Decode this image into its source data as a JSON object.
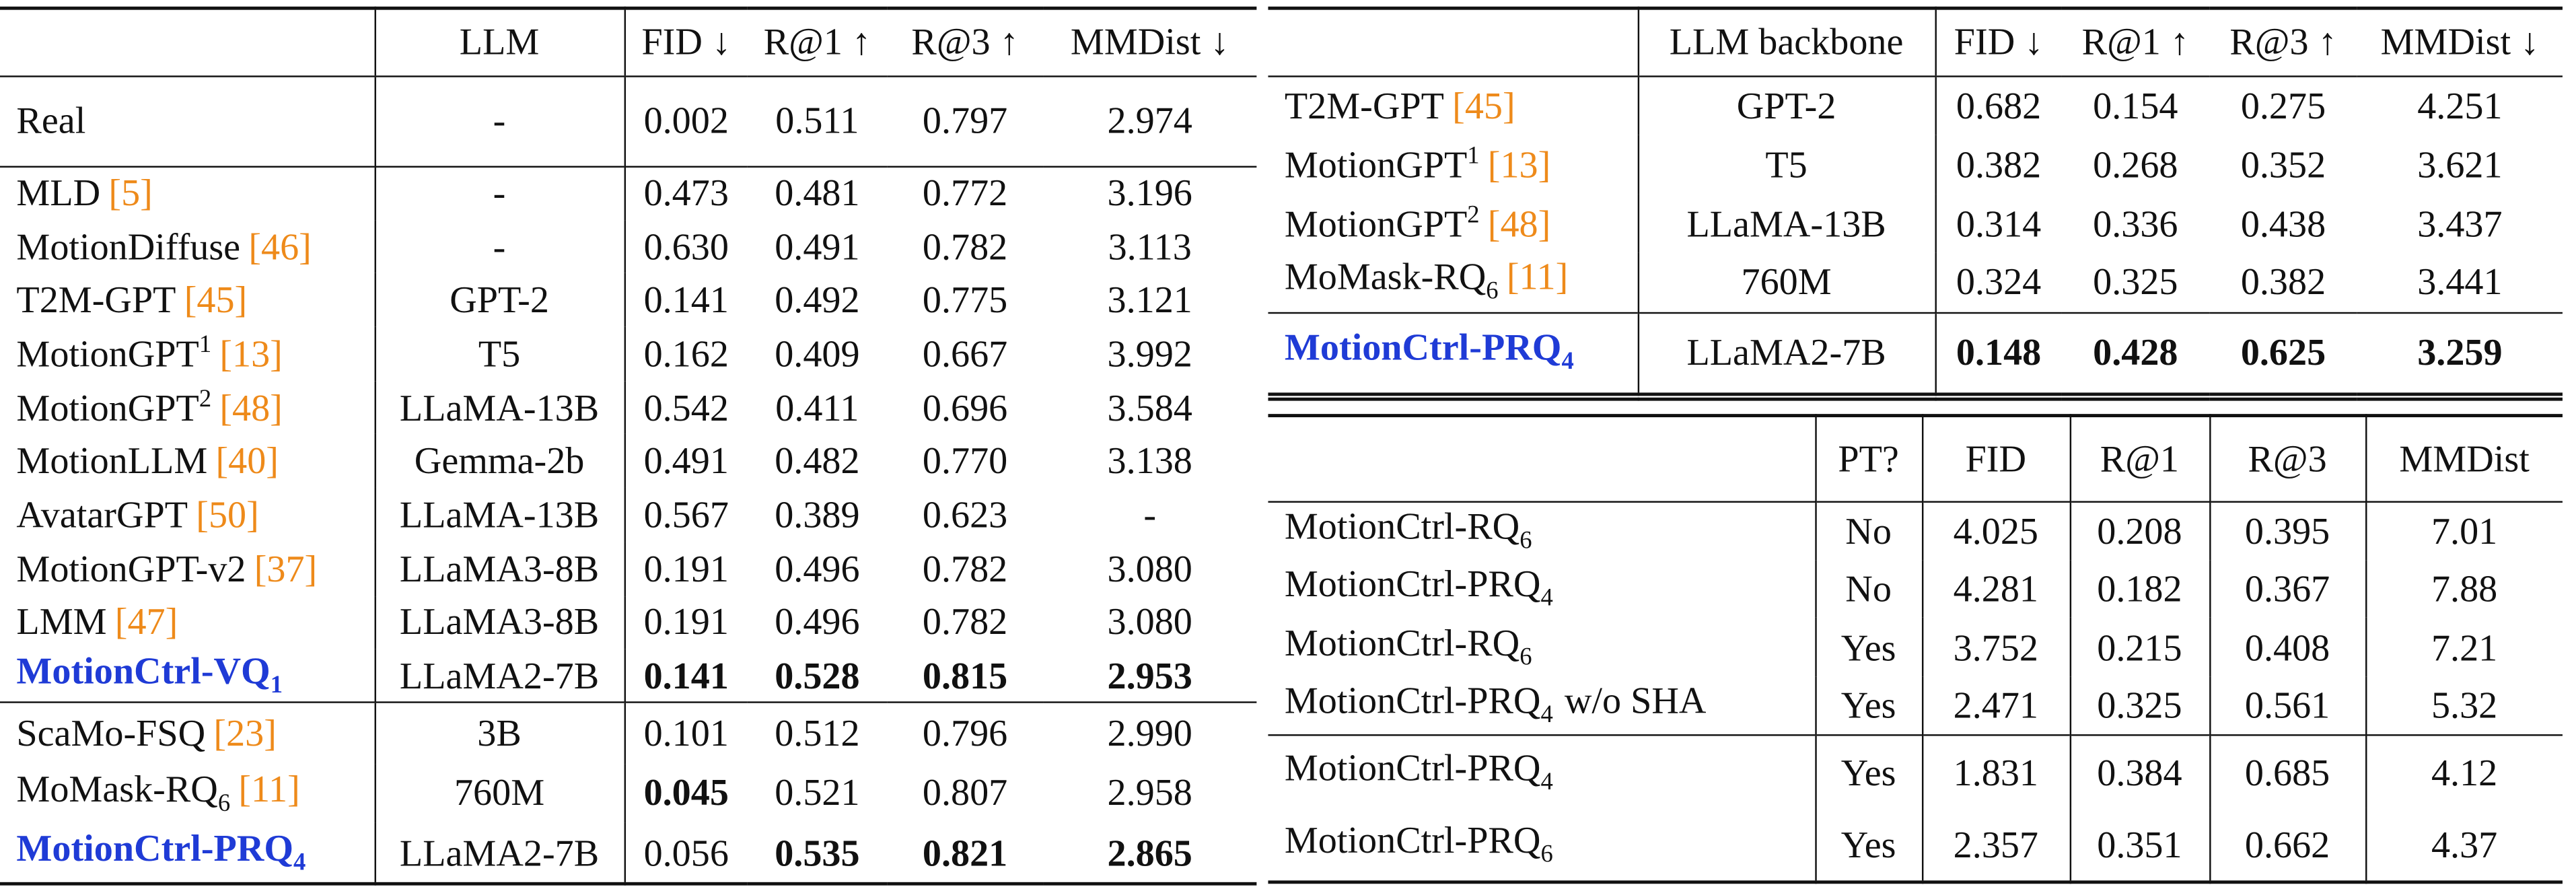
{
  "tables": [
    {
      "columns": [
        "LLM",
        "FID ↓",
        "R@1 ↑",
        "R@3 ↑",
        "MMDist ↓"
      ],
      "groups": [
        [
          {
            "method": {
              "name": "Real"
            },
            "cells": [
              "-",
              "0.002",
              "0.511",
              "0.797",
              "2.974"
            ]
          }
        ],
        [
          {
            "method": {
              "name": "MLD",
              "ref": "[5]"
            },
            "cells": [
              "-",
              "0.473",
              "0.481",
              "0.772",
              "3.196"
            ]
          },
          {
            "method": {
              "name": "MotionDiffuse",
              "ref": "[46]"
            },
            "cells": [
              "-",
              "0.630",
              "0.491",
              "0.782",
              "3.113"
            ]
          },
          {
            "method": {
              "name": "T2M-GPT",
              "ref": "[45]"
            },
            "cells": [
              "GPT-2",
              "0.141",
              "0.492",
              "0.775",
              "3.121"
            ]
          },
          {
            "method": {
              "name": "MotionGPT",
              "sup": "1",
              "ref": "[13]"
            },
            "cells": [
              "T5",
              "0.162",
              "0.409",
              "0.667",
              "3.992"
            ]
          },
          {
            "method": {
              "name": "MotionGPT",
              "sup": "2",
              "ref": "[48]"
            },
            "cells": [
              "LLaMA-13B",
              "0.542",
              "0.411",
              "0.696",
              "3.584"
            ]
          },
          {
            "method": {
              "name": "MotionLLM",
              "ref": "[40]"
            },
            "cells": [
              "Gemma-2b",
              "0.491",
              "0.482",
              "0.770",
              "3.138"
            ]
          },
          {
            "method": {
              "name": "AvatarGPT",
              "ref": "[50]"
            },
            "cells": [
              "LLaMA-13B",
              "0.567",
              "0.389",
              "0.623",
              "-"
            ]
          },
          {
            "method": {
              "name": "MotionGPT-v2",
              "ref": "[37]"
            },
            "cells": [
              "LLaMA3-8B",
              "0.191",
              "0.496",
              "0.782",
              "3.080"
            ]
          },
          {
            "method": {
              "name": "LMM",
              "ref": "[47]"
            },
            "cells": [
              "LLaMA3-8B",
              "0.191",
              "0.496",
              "0.782",
              "3.080"
            ]
          },
          {
            "method": {
              "name": "MotionCtrl-VQ",
              "sub": "1",
              "highlight": true
            },
            "cells": [
              "LLaMA2-7B",
              {
                "text": "0.141",
                "bold": true
              },
              {
                "text": "0.528",
                "bold": true
              },
              {
                "text": "0.815",
                "bold": true
              },
              {
                "text": "2.953",
                "bold": true
              }
            ]
          }
        ],
        [
          {
            "method": {
              "name": "ScaMo-FSQ",
              "ref": "[23]"
            },
            "cells": [
              "3B",
              "0.101",
              "0.512",
              "0.796",
              "2.990"
            ]
          },
          {
            "method": {
              "name": "MoMask-RQ",
              "sub": "6",
              "ref": "[11]"
            },
            "cells": [
              "760M",
              {
                "text": "0.045",
                "bold": true
              },
              "0.521",
              "0.807",
              "2.958"
            ]
          },
          {
            "method": {
              "name": "MotionCtrl-PRQ",
              "sub": "4",
              "highlight": true
            },
            "cells": [
              "LLaMA2-7B",
              "0.056",
              {
                "text": "0.535",
                "bold": true
              },
              {
                "text": "0.821",
                "bold": true
              },
              {
                "text": "2.865",
                "bold": true
              }
            ]
          }
        ]
      ]
    },
    {
      "columns": [
        "LLM backbone",
        "FID ↓",
        "R@1 ↑",
        "R@3 ↑",
        "MMDist ↓"
      ],
      "groups": [
        [
          {
            "method": {
              "name": "T2M-GPT",
              "ref": "[45]"
            },
            "cells": [
              "GPT-2",
              "0.682",
              "0.154",
              "0.275",
              "4.251"
            ]
          },
          {
            "method": {
              "name": "MotionGPT",
              "sup": "1",
              "ref": "[13]"
            },
            "cells": [
              "T5",
              "0.382",
              "0.268",
              "0.352",
              "3.621"
            ]
          },
          {
            "method": {
              "name": "MotionGPT",
              "sup": "2",
              "ref": "[48]"
            },
            "cells": [
              "LLaMA-13B",
              "0.314",
              "0.336",
              "0.438",
              "3.437"
            ]
          },
          {
            "method": {
              "name": "MoMask-RQ",
              "sub": "6",
              "ref": "[11]"
            },
            "cells": [
              "760M",
              "0.324",
              "0.325",
              "0.382",
              "3.441"
            ]
          }
        ],
        [
          {
            "method": {
              "name": "MotionCtrl-PRQ",
              "sub": "4",
              "highlight": true
            },
            "cells": [
              "LLaMA2-7B",
              {
                "text": "0.148",
                "bold": true
              },
              {
                "text": "0.428",
                "bold": true
              },
              {
                "text": "0.625",
                "bold": true
              },
              {
                "text": "3.259",
                "bold": true
              }
            ]
          }
        ]
      ]
    },
    {
      "columns": [
        "PT?",
        "FID",
        "R@1",
        "R@3",
        "MMDist"
      ],
      "groups": [
        [
          {
            "method": {
              "name": "MotionCtrl-RQ",
              "sub": "6"
            },
            "cells": [
              "No",
              "4.025",
              "0.208",
              "0.395",
              "7.01"
            ]
          },
          {
            "method": {
              "name": "MotionCtrl-PRQ",
              "sub": "4"
            },
            "cells": [
              "No",
              "4.281",
              "0.182",
              "0.367",
              "7.88"
            ]
          },
          {
            "method": {
              "name": "MotionCtrl-RQ",
              "sub": "6"
            },
            "cells": [
              "Yes",
              "3.752",
              "0.215",
              "0.408",
              "7.21"
            ]
          },
          {
            "method": {
              "name": "MotionCtrl-PRQ",
              "sub": "4",
              "suffix": "w/o SHA"
            },
            "cells": [
              "Yes",
              "2.471",
              "0.325",
              "0.561",
              "5.32"
            ]
          }
        ],
        [
          {
            "method": {
              "name": "MotionCtrl-PRQ",
              "sub": "4"
            },
            "cells": [
              "Yes",
              "1.831",
              "0.384",
              "0.685",
              "4.12"
            ]
          },
          {
            "method": {
              "name": "MotionCtrl-PRQ",
              "sub": "6"
            },
            "cells": [
              "Yes",
              "2.357",
              "0.351",
              "0.662",
              "4.37"
            ]
          }
        ]
      ]
    }
  ]
}
